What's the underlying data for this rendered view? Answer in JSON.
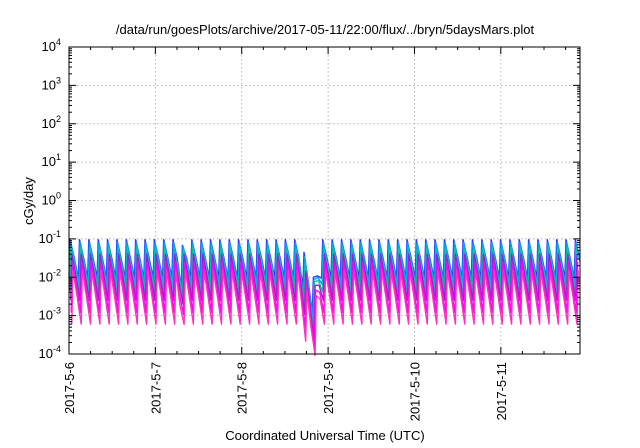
{
  "chart_data": {
    "type": "line",
    "title": "/data/run/goesPlots/archive/2017-05-11/22:00/flux/../bryn/5daysMars.plot",
    "xlabel": "Coordinated Universal Time (UTC)",
    "ylabel": "cGy/day",
    "y_scale": "log",
    "ylim": [
      0.0001,
      10000
    ],
    "xlim": [
      "2017-05-06 00:00",
      "2017-05-11 22:00"
    ],
    "grid": true,
    "legend": "none",
    "x_tick_labels": [
      "2017-5-6",
      "2017-5-7",
      "2017-5-8",
      "2017-5-9",
      "2017-5-10",
      "2017-5-11"
    ],
    "y_ticks": [
      {
        "value": 0.0001,
        "base": "10",
        "exp": "-4"
      },
      {
        "value": 0.001,
        "base": "10",
        "exp": "-3"
      },
      {
        "value": 0.01,
        "base": "10",
        "exp": "-2"
      },
      {
        "value": 0.1,
        "base": "10",
        "exp": "-1"
      },
      {
        "value": 1,
        "base": "10",
        "exp": "0"
      },
      {
        "value": 10,
        "base": "10",
        "exp": "1"
      },
      {
        "value": 100,
        "base": "10",
        "exp": "2"
      },
      {
        "value": 1000,
        "base": "10",
        "exp": "3"
      },
      {
        "value": 10000,
        "base": "10",
        "exp": "4"
      }
    ],
    "cycle_hours": 2.6,
    "series": [
      {
        "color": "#3030ff",
        "peak": 0.095,
        "trough": 0.0095
      },
      {
        "color": "#00a0ff",
        "peak": 0.08,
        "trough": 0.0065
      },
      {
        "color": "#00c8a0",
        "peak": 0.06,
        "trough": 0.0042
      },
      {
        "color": "#a020c8",
        "peak": 0.04,
        "trough": 0.0025
      },
      {
        "color": "#ff00ff",
        "peak": 0.025,
        "trough": 0.0012
      },
      {
        "color": "#ff30c0",
        "peak": 0.015,
        "trough": 0.0006
      }
    ],
    "events": [
      {
        "note": "dip",
        "start": "2017-05-08 16:00",
        "min_time": "2017-05-08 20:00",
        "end": "2017-05-08 22:00",
        "min_factor": 0.1
      },
      {
        "note": "dip",
        "start": "2017-05-07 06:00",
        "min_time": "2017-05-07 07:00",
        "end": "2017-05-07 08:00",
        "min_factor": 0.5
      }
    ]
  }
}
